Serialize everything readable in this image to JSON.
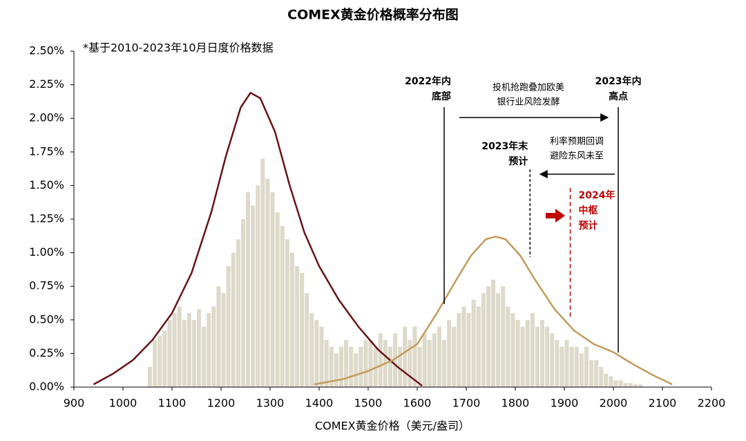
{
  "chart_data": {
    "type": "histogram",
    "title": "COMEX黄金价格概率分布图",
    "subtitle": "*基于2010-2023年10月日度价格数据",
    "x_label": "COMEX黄金价格（美元/盎司）",
    "color": "#dedacb",
    "bins": [
      1050,
      1060,
      1070,
      1080,
      1090,
      1100,
      1110,
      1120,
      1130,
      1140,
      1150,
      1160,
      1170,
      1180,
      1190,
      1200,
      1210,
      1220,
      1230,
      1240,
      1250,
      1260,
      1270,
      1280,
      1290,
      1300,
      1310,
      1320,
      1330,
      1340,
      1350,
      1360,
      1370,
      1380,
      1390,
      1400,
      1410,
      1420,
      1430,
      1440,
      1450,
      1460,
      1470,
      1480,
      1490,
      1500,
      1510,
      1520,
      1530,
      1540,
      1550,
      1560,
      1570,
      1580,
      1590,
      1600,
      1610,
      1620,
      1630,
      1640,
      1650,
      1660,
      1670,
      1680,
      1690,
      1700,
      1710,
      1720,
      1730,
      1740,
      1750,
      1760,
      1770,
      1780,
      1790,
      1800,
      1810,
      1820,
      1830,
      1840,
      1850,
      1860,
      1870,
      1880,
      1890,
      1900,
      1910,
      1920,
      1930,
      1940,
      1950,
      1960,
      1970,
      1980,
      1990,
      2000,
      2010,
      2020,
      2030,
      2040,
      2050,
      2060
    ],
    "values": [
      0.15,
      0.35,
      0.38,
      0.42,
      0.5,
      0.55,
      0.6,
      0.5,
      0.55,
      0.5,
      0.58,
      0.45,
      0.55,
      0.6,
      0.75,
      0.7,
      0.9,
      1.0,
      1.1,
      1.25,
      1.45,
      1.35,
      1.5,
      1.7,
      1.55,
      1.45,
      1.3,
      1.2,
      1.1,
      1.0,
      0.9,
      0.85,
      0.7,
      0.55,
      0.5,
      0.45,
      0.35,
      0.3,
      0.25,
      0.3,
      0.35,
      0.3,
      0.25,
      0.3,
      0.35,
      0.35,
      0.3,
      0.4,
      0.35,
      0.3,
      0.4,
      0.3,
      0.45,
      0.35,
      0.45,
      0.3,
      0.4,
      0.35,
      0.4,
      0.45,
      0.35,
      0.5,
      0.45,
      0.55,
      0.6,
      0.55,
      0.65,
      0.6,
      0.7,
      0.75,
      0.8,
      0.7,
      0.75,
      0.6,
      0.55,
      0.5,
      0.45,
      0.5,
      0.55,
      0.45,
      0.5,
      0.45,
      0.4,
      0.35,
      0.3,
      0.35,
      0.3,
      0.3,
      0.25,
      0.3,
      0.2,
      0.2,
      0.15,
      0.1,
      0.08,
      0.05,
      0.05,
      0.03,
      0.03,
      0.02,
      0.02
    ],
    "curves": [
      {
        "color": "#6b1116",
        "x": [
          940,
          980,
          1020,
          1060,
          1100,
          1140,
          1180,
          1210,
          1240,
          1260,
          1280,
          1310,
          1340,
          1370,
          1400,
          1440,
          1480,
          1520,
          1560,
          1610
        ],
        "y": [
          0.02,
          0.1,
          0.2,
          0.35,
          0.55,
          0.85,
          1.3,
          1.72,
          2.08,
          2.19,
          2.15,
          1.9,
          1.5,
          1.15,
          0.9,
          0.65,
          0.45,
          0.28,
          0.15,
          0.01
        ]
      },
      {
        "color": "#c49a5a",
        "x": [
          1390,
          1450,
          1500,
          1550,
          1600,
          1640,
          1680,
          1710,
          1740,
          1760,
          1780,
          1810,
          1840,
          1880,
          1920,
          1960,
          2000,
          2040,
          2080,
          2120
        ],
        "y": [
          0.02,
          0.06,
          0.12,
          0.2,
          0.32,
          0.55,
          0.8,
          0.98,
          1.1,
          1.12,
          1.1,
          0.98,
          0.8,
          0.58,
          0.42,
          0.32,
          0.26,
          0.17,
          0.09,
          0.02
        ]
      }
    ],
    "xlim": [
      900,
      2200
    ],
    "xticks": [
      900,
      1000,
      1100,
      1200,
      1300,
      1400,
      1500,
      1600,
      1700,
      1800,
      1900,
      2000,
      2100,
      2200
    ],
    "ylim": [
      0,
      2.5
    ],
    "yticks": [
      {
        "value": 0,
        "label": "0.00%"
      },
      {
        "value": 0.25,
        "label": "0.25%"
      },
      {
        "value": 0.5,
        "label": "0.50%"
      },
      {
        "value": 0.75,
        "label": "0.75%"
      },
      {
        "value": 1,
        "label": "1.00%"
      },
      {
        "value": 1.25,
        "label": "1.25%"
      },
      {
        "value": 1.5,
        "label": "1.50%"
      },
      {
        "value": 1.75,
        "label": "1.75%"
      },
      {
        "value": 2,
        "label": "2.00%"
      },
      {
        "value": 2.25,
        "label": "2.25%"
      },
      {
        "value": 2.5,
        "label": "2.50%"
      }
    ],
    "markers": [
      {
        "x": 1655,
        "lines": [
          "2022年内",
          "底部"
        ],
        "color": "#000000"
      },
      {
        "x": 1830,
        "lines": [
          "2023年末",
          "预计"
        ],
        "color": "#000000"
      },
      {
        "x": 1912,
        "lines": [
          "2024年",
          "中枢",
          "预计"
        ],
        "color": "#c00000"
      },
      {
        "x": 2010,
        "lines": [
          "2023年内",
          "高点"
        ],
        "color": "#000000"
      }
    ],
    "arrow_notes": [
      {
        "lines": [
          "投机抢跑叠加欧美",
          "银行业风险发酵"
        ]
      },
      {
        "lines": [
          "利率预期回调",
          "避险东风未至"
        ]
      }
    ]
  }
}
